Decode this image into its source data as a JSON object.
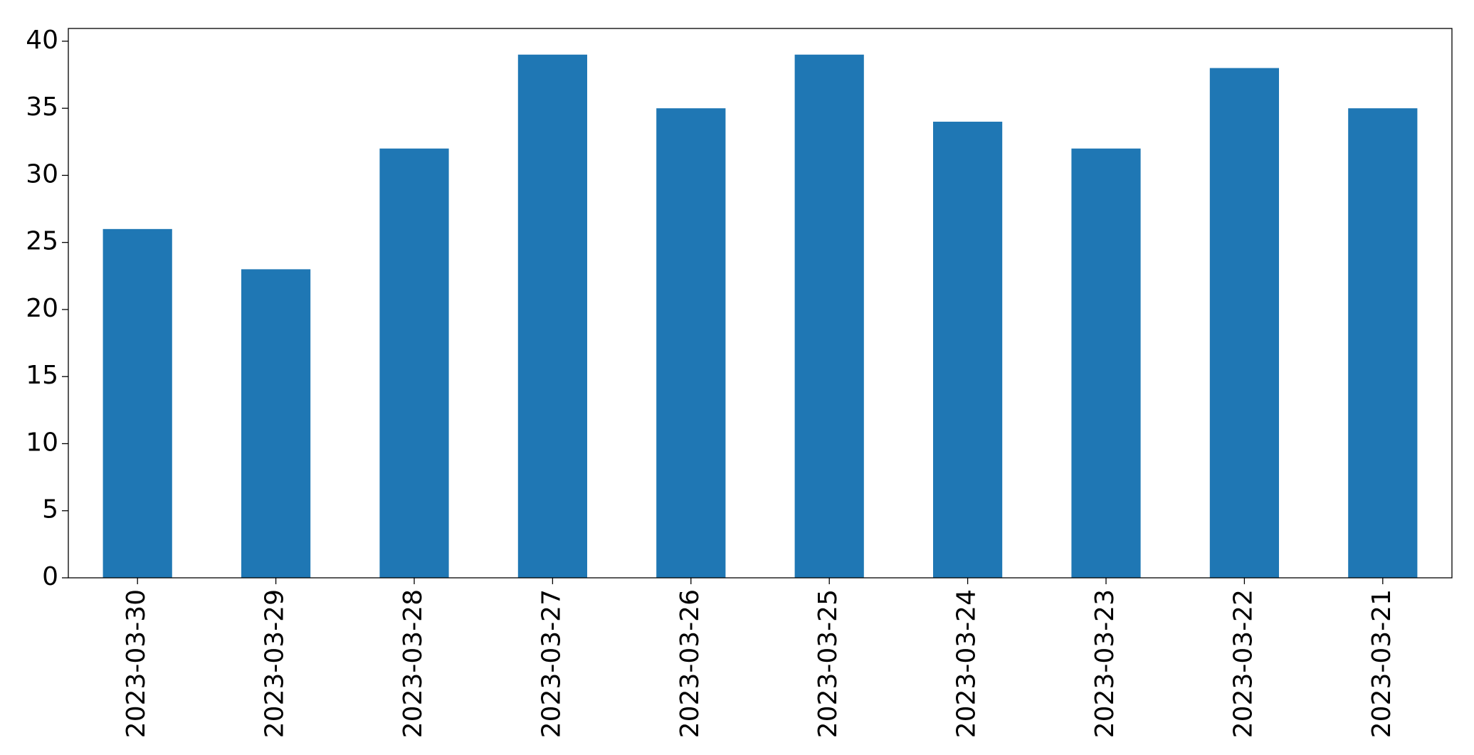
{
  "chart_data": {
    "type": "bar",
    "categories": [
      "2023-03-30",
      "2023-03-29",
      "2023-03-28",
      "2023-03-27",
      "2023-03-26",
      "2023-03-25",
      "2023-03-24",
      "2023-03-23",
      "2023-03-22",
      "2023-03-21"
    ],
    "values": [
      26,
      23,
      32,
      39,
      35,
      39,
      34,
      32,
      38,
      35
    ],
    "color": "#1f77b4",
    "ylim": [
      0,
      40.95
    ],
    "yticks": [
      0,
      5,
      10,
      15,
      20,
      25,
      30,
      35,
      40
    ],
    "grid": false
  }
}
